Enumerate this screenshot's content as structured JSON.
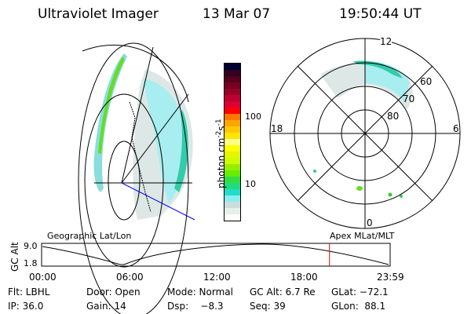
{
  "header": {
    "instrument": "Ultraviolet Imager",
    "date": "13 Mar 07",
    "time": "19:50:44 UT"
  },
  "colorbar": {
    "label": "photon cm",
    "label_sup1": "-2",
    "label_s": "s",
    "label_sup2": "-1",
    "ticks": [
      "100",
      "10"
    ],
    "colors": [
      "#000033",
      "#330022",
      "#55001f",
      "#770022",
      "#990028",
      "#bb0030",
      "#dd0033",
      "#ff0000",
      "#ff7700",
      "#ffa500",
      "#ffc800",
      "#ffe600",
      "#ffff88",
      "#ffff00",
      "#e6f500",
      "#ccff00",
      "#99ee00",
      "#66ee00",
      "#33dd44",
      "#22dd77",
      "#22ddcc",
      "#88eeee",
      "#ccdddd",
      "#e6f0ea",
      "#ffffff"
    ]
  },
  "polar": {
    "ring_labels": [
      "60",
      "70",
      "80"
    ],
    "mlt_labels": {
      "top": "12",
      "left": "18",
      "right": "6",
      "bottom": "0"
    }
  },
  "timeline": {
    "left_label": "Geographic Lat/Lon",
    "right_label": "Apex MLat/MLT",
    "y_axis_label": "GC Alt",
    "y_ticks": [
      "9.0",
      "1.8"
    ],
    "x_ticks": [
      "00:00",
      "06:00",
      "12:00",
      "18:00",
      "23:59"
    ],
    "current_time_fraction": 0.826,
    "marker_color": "#dd0000"
  },
  "status": {
    "row1": [
      "Flt: LBHL",
      "Door: Open",
      "Mode: Normal",
      "GC Alt: 6.7 Re",
      "GLat: −72.1"
    ],
    "row2": [
      "IP: 36.0",
      "Gain: 14",
      "Dsp:    −8.3",
      "Seq: 39",
      "GLon:  88.1"
    ]
  }
}
